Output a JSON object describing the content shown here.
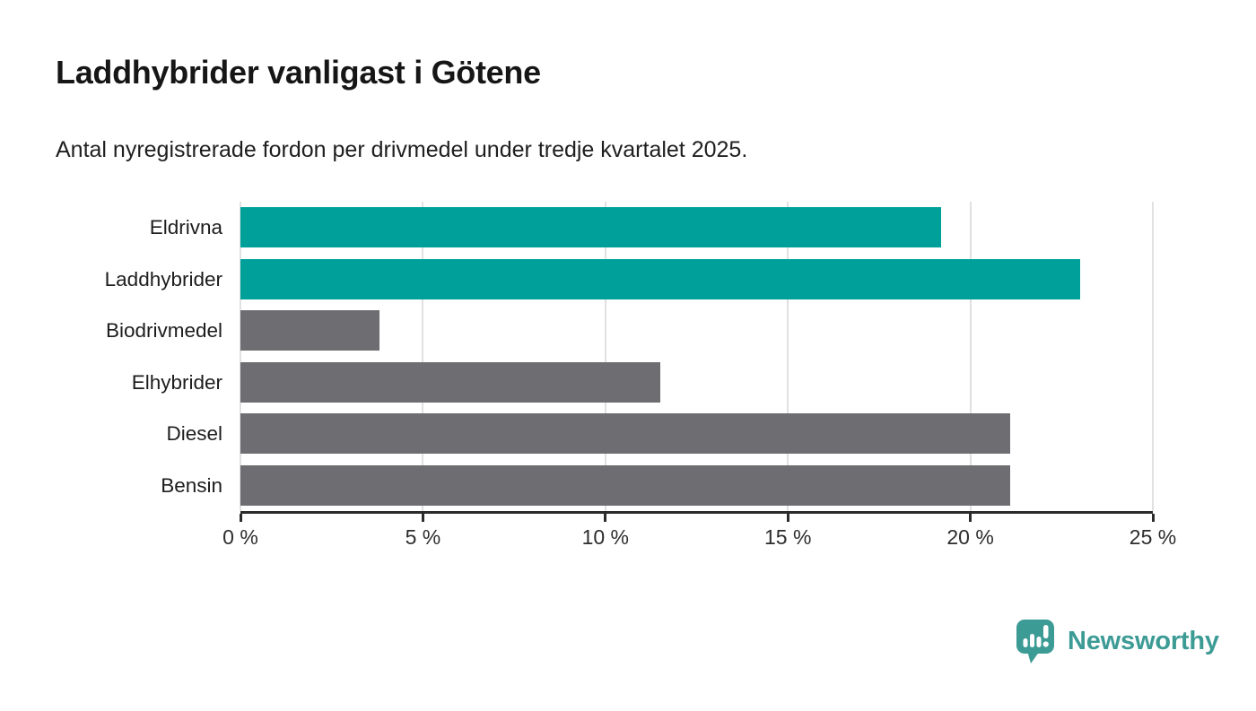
{
  "header": {
    "title": "Laddhybrider vanligast i Götene",
    "subtitle": "Antal nyregistrerade fordon per drivmedel under tredje kvartalet 2025."
  },
  "chart_data": {
    "type": "bar",
    "orientation": "horizontal",
    "title": "Laddhybrider vanligast i Götene",
    "subtitle": "Antal nyregistrerade fordon per drivmedel under tredje kvartalet 2025.",
    "categories": [
      "Eldrivna",
      "Laddhybrider",
      "Biodrivmedel",
      "Elhybrider",
      "Diesel",
      "Bensin"
    ],
    "values": [
      19.2,
      23.0,
      3.8,
      11.5,
      21.1,
      21.1
    ],
    "unit": "%",
    "xlim": [
      0,
      25
    ],
    "x_ticks": [
      0,
      5,
      10,
      15,
      20,
      25
    ],
    "x_tick_labels": [
      "0 %",
      "5 %",
      "10 %",
      "15 %",
      "20 %",
      "25 %"
    ],
    "bar_colors": [
      "#00a09a",
      "#00a09a",
      "#6e6d72",
      "#6e6d72",
      "#6e6d72",
      "#6e6d72"
    ],
    "highlight_color": "#00a09a",
    "default_color": "#6e6d72",
    "gridline_color": "#e1e1e1",
    "grid": true,
    "legend": false,
    "ylabel": "",
    "xlabel": ""
  },
  "branding": {
    "logo_text": "Newsworthy",
    "logo_color": "#3d9b95",
    "logo_icon": "newsworthy-bubble-chart-icon"
  }
}
